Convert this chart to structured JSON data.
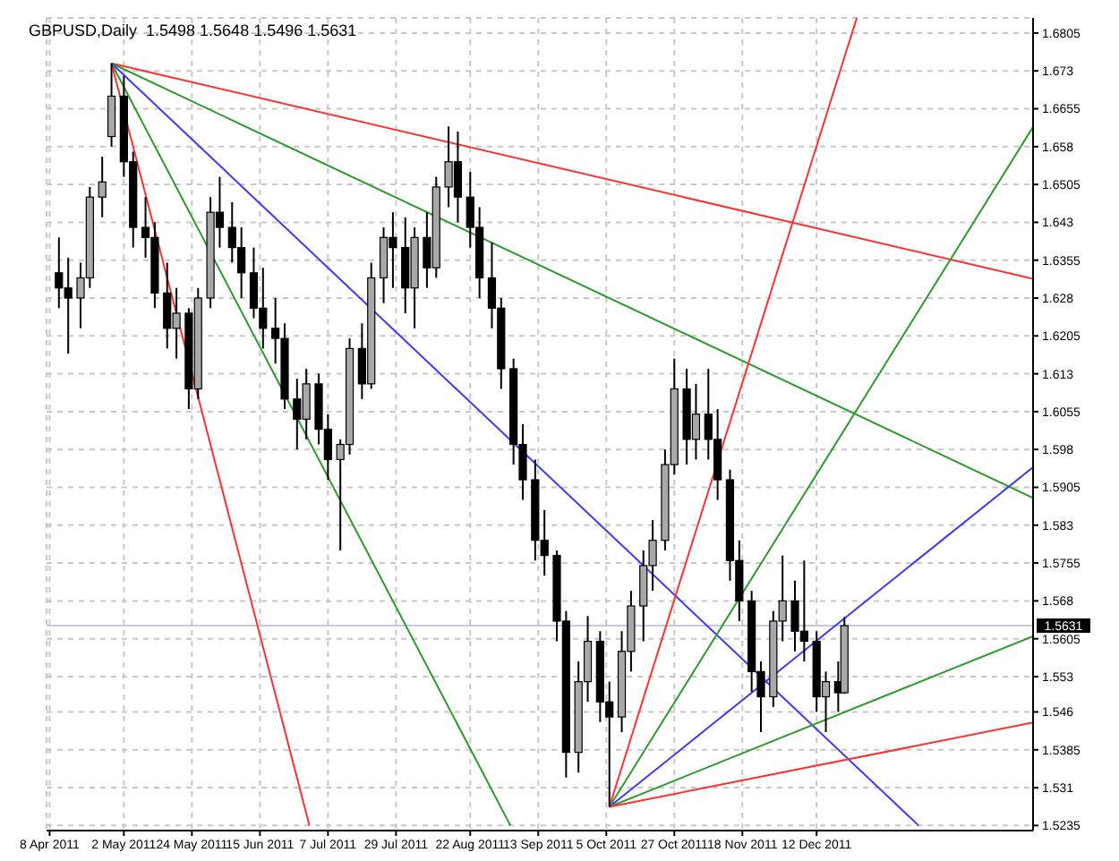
{
  "chart_data": {
    "type": "candlestick",
    "title": "GBPUSD,Daily  1.5498 1.5648 1.5496 1.5631",
    "x": [
      "2011-04-11",
      "2011-04-14",
      "2011-04-18",
      "2011-04-21",
      "2011-04-25",
      "2011-04-28",
      "2011-05-02",
      "2011-05-05",
      "2011-05-09",
      "2011-05-12",
      "2011-05-16",
      "2011-05-19",
      "2011-05-23",
      "2011-05-26",
      "2011-05-30",
      "2011-06-02",
      "2011-06-06",
      "2011-06-09",
      "2011-06-13",
      "2011-06-16",
      "2011-06-20",
      "2011-06-23",
      "2011-06-27",
      "2011-06-30",
      "2011-07-04",
      "2011-07-07",
      "2011-07-11",
      "2011-07-14",
      "2011-07-18",
      "2011-07-21",
      "2011-07-25",
      "2011-07-28",
      "2011-08-01",
      "2011-08-04",
      "2011-08-08",
      "2011-08-11",
      "2011-08-15",
      "2011-08-18",
      "2011-08-22",
      "2011-08-25",
      "2011-08-29",
      "2011-09-01",
      "2011-09-05",
      "2011-09-08",
      "2011-09-12",
      "2011-09-15",
      "2011-09-19",
      "2011-09-22",
      "2011-09-26",
      "2011-09-29",
      "2011-10-03",
      "2011-10-06",
      "2011-10-10",
      "2011-10-13",
      "2011-10-17",
      "2011-10-20",
      "2011-10-24",
      "2011-10-27",
      "2011-10-31",
      "2011-11-03",
      "2011-11-07",
      "2011-11-10",
      "2011-11-14",
      "2011-11-17",
      "2011-11-21",
      "2011-11-24",
      "2011-11-28",
      "2011-12-01",
      "2011-12-05",
      "2011-12-08",
      "2011-12-12",
      "2011-12-15",
      "2011-12-19",
      "2011-12-21"
    ],
    "ohlc": [
      [
        1.633,
        1.64,
        1.626,
        1.63
      ],
      [
        1.63,
        1.636,
        1.617,
        1.628
      ],
      [
        1.628,
        1.635,
        1.622,
        1.632
      ],
      [
        1.632,
        1.65,
        1.63,
        1.648
      ],
      [
        1.648,
        1.656,
        1.644,
        1.651
      ],
      [
        1.66,
        1.6745,
        1.658,
        1.668
      ],
      [
        1.668,
        1.672,
        1.652,
        1.655
      ],
      [
        1.655,
        1.657,
        1.638,
        1.642
      ],
      [
        1.642,
        1.648,
        1.636,
        1.64
      ],
      [
        1.64,
        1.643,
        1.626,
        1.629
      ],
      [
        1.629,
        1.635,
        1.618,
        1.622
      ],
      [
        1.622,
        1.63,
        1.616,
        1.625
      ],
      [
        1.625,
        1.626,
        1.606,
        1.61
      ],
      [
        1.61,
        1.63,
        1.608,
        1.628
      ],
      [
        1.628,
        1.648,
        1.626,
        1.645
      ],
      [
        1.645,
        1.652,
        1.638,
        1.642
      ],
      [
        1.642,
        1.647,
        1.635,
        1.638
      ],
      [
        1.638,
        1.642,
        1.628,
        1.633
      ],
      [
        1.633,
        1.638,
        1.624,
        1.626
      ],
      [
        1.626,
        1.634,
        1.618,
        1.622
      ],
      [
        1.622,
        1.628,
        1.615,
        1.62
      ],
      [
        1.62,
        1.623,
        1.606,
        1.608
      ],
      [
        1.608,
        1.612,
        1.598,
        1.604
      ],
      [
        1.604,
        1.614,
        1.6,
        1.611
      ],
      [
        1.611,
        1.613,
        1.599,
        1.602
      ],
      [
        1.602,
        1.605,
        1.592,
        1.596
      ],
      [
        1.596,
        1.6,
        1.578,
        1.599
      ],
      [
        1.599,
        1.62,
        1.597,
        1.618
      ],
      [
        1.618,
        1.623,
        1.608,
        1.611
      ],
      [
        1.611,
        1.635,
        1.61,
        1.632
      ],
      [
        1.632,
        1.642,
        1.627,
        1.64
      ],
      [
        1.64,
        1.645,
        1.63,
        1.638
      ],
      [
        1.638,
        1.644,
        1.625,
        1.63
      ],
      [
        1.63,
        1.642,
        1.622,
        1.64
      ],
      [
        1.64,
        1.645,
        1.63,
        1.634
      ],
      [
        1.634,
        1.652,
        1.632,
        1.65
      ],
      [
        1.65,
        1.662,
        1.646,
        1.655
      ],
      [
        1.655,
        1.661,
        1.643,
        1.648
      ],
      [
        1.648,
        1.653,
        1.638,
        1.642
      ],
      [
        1.642,
        1.646,
        1.628,
        1.632
      ],
      [
        1.632,
        1.639,
        1.622,
        1.626
      ],
      [
        1.626,
        1.628,
        1.61,
        1.614
      ],
      [
        1.614,
        1.616,
        1.595,
        1.599
      ],
      [
        1.599,
        1.603,
        1.588,
        1.592
      ],
      [
        1.592,
        1.596,
        1.576,
        1.58
      ],
      [
        1.58,
        1.586,
        1.573,
        1.577
      ],
      [
        1.577,
        1.578,
        1.56,
        1.564
      ],
      [
        1.564,
        1.566,
        1.533,
        1.538
      ],
      [
        1.538,
        1.556,
        1.534,
        1.552
      ],
      [
        1.552,
        1.565,
        1.548,
        1.56
      ],
      [
        1.56,
        1.562,
        1.544,
        1.548
      ],
      [
        1.548,
        1.552,
        1.5272,
        1.545
      ],
      [
        1.545,
        1.562,
        1.542,
        1.558
      ],
      [
        1.558,
        1.57,
        1.554,
        1.567
      ],
      [
        1.567,
        1.578,
        1.56,
        1.575
      ],
      [
        1.575,
        1.584,
        1.57,
        1.58
      ],
      [
        1.58,
        1.598,
        1.578,
        1.595
      ],
      [
        1.595,
        1.616,
        1.593,
        1.61
      ],
      [
        1.61,
        1.614,
        1.595,
        1.6
      ],
      [
        1.6,
        1.611,
        1.596,
        1.605
      ],
      [
        1.605,
        1.614,
        1.596,
        1.6
      ],
      [
        1.6,
        1.606,
        1.588,
        1.592
      ],
      [
        1.592,
        1.594,
        1.572,
        1.576
      ],
      [
        1.576,
        1.58,
        1.564,
        1.568
      ],
      [
        1.568,
        1.57,
        1.55,
        1.554
      ],
      [
        1.554,
        1.556,
        1.542,
        1.549
      ],
      [
        1.549,
        1.566,
        1.547,
        1.564
      ],
      [
        1.564,
        1.577,
        1.56,
        1.568
      ],
      [
        1.568,
        1.572,
        1.558,
        1.562
      ],
      [
        1.562,
        1.576,
        1.556,
        1.56
      ],
      [
        1.56,
        1.562,
        1.546,
        1.549
      ],
      [
        1.549,
        1.554,
        1.542,
        1.552
      ],
      [
        1.552,
        1.556,
        1.546,
        1.5498
      ],
      [
        1.5498,
        1.5648,
        1.5496,
        1.5631
      ]
    ],
    "series": [
      {
        "type": "line",
        "color": "#ff3030",
        "x": [
          "2011-04-28",
          "2012-02-20"
        ],
        "values": [
          1.6745,
          1.6318
        ]
      },
      {
        "type": "line",
        "color": "#2e9a2e",
        "x": [
          "2011-04-28",
          "2012-02-20"
        ],
        "values": [
          1.6745,
          1.5884
        ]
      },
      {
        "type": "line",
        "color": "#3a3aff",
        "x": [
          "2011-04-28",
          "2012-01-14"
        ],
        "values": [
          1.6745,
          1.5235
        ]
      },
      {
        "type": "line",
        "color": "#2e9a2e",
        "x": [
          "2011-04-28",
          "2011-09-04"
        ],
        "values": [
          1.6745,
          1.5235
        ]
      },
      {
        "type": "line",
        "color": "#ff3030",
        "x": [
          "2011-04-28",
          "2011-07-01"
        ],
        "values": [
          1.6745,
          1.5235
        ]
      },
      {
        "type": "line",
        "color": "#ff3030",
        "x": [
          "2011-10-06",
          "2011-12-25"
        ],
        "values": [
          1.5272,
          1.6835
        ]
      },
      {
        "type": "line",
        "color": "#2e9a2e",
        "x": [
          "2011-10-06",
          "2012-02-20"
        ],
        "values": [
          1.5272,
          1.6619
        ]
      },
      {
        "type": "line",
        "color": "#3a3aff",
        "x": [
          "2011-10-06",
          "2012-02-20"
        ],
        "values": [
          1.5272,
          1.5945
        ]
      },
      {
        "type": "line",
        "color": "#2e9a2e",
        "x": [
          "2011-10-06",
          "2012-02-20"
        ],
        "values": [
          1.5272,
          1.561
        ]
      },
      {
        "type": "line",
        "color": "#ff3030",
        "x": [
          "2011-10-06",
          "2012-02-20"
        ],
        "values": [
          1.5272,
          1.5439
        ]
      }
    ],
    "xlim": [
      "2011-04-07",
      "2012-02-20"
    ],
    "xticks": [
      {
        "value": "2011-04-08",
        "label": "8 Apr 2011"
      },
      {
        "value": "2011-05-02",
        "label": "2 May 2011"
      },
      {
        "value": "2011-05-24",
        "label": "24 May 2011"
      },
      {
        "value": "2011-06-15",
        "label": "15 Jun 2011"
      },
      {
        "value": "2011-07-07",
        "label": "7 Jul 2011"
      },
      {
        "value": "2011-07-29",
        "label": "29 Jul 2011"
      },
      {
        "value": "2011-08-22",
        "label": "22 Aug 2011"
      },
      {
        "value": "2011-09-13",
        "label": "13 Sep 2011"
      },
      {
        "value": "2011-10-05",
        "label": "5 Oct 2011"
      },
      {
        "value": "2011-10-27",
        "label": "27 Oct 2011"
      },
      {
        "value": "2011-11-18",
        "label": "18 Nov 2011"
      },
      {
        "value": "2011-12-12",
        "label": "12 Dec 2011"
      }
    ],
    "ylim": [
      1.5225,
      1.6835
    ],
    "yticks": [
      1.5235,
      1.531,
      1.5385,
      1.546,
      1.553,
      1.5605,
      1.568,
      1.5755,
      1.583,
      1.5905,
      1.598,
      1.6055,
      1.613,
      1.6205,
      1.628,
      1.6355,
      1.643,
      1.6505,
      1.658,
      1.6655,
      1.673,
      1.6805
    ],
    "ref_lines": [
      {
        "axis": "y",
        "value": 1.5631,
        "label": "1.5631",
        "color": "#c8c8dc"
      }
    ],
    "grid": true,
    "marker": "none",
    "line_style": "solid"
  }
}
